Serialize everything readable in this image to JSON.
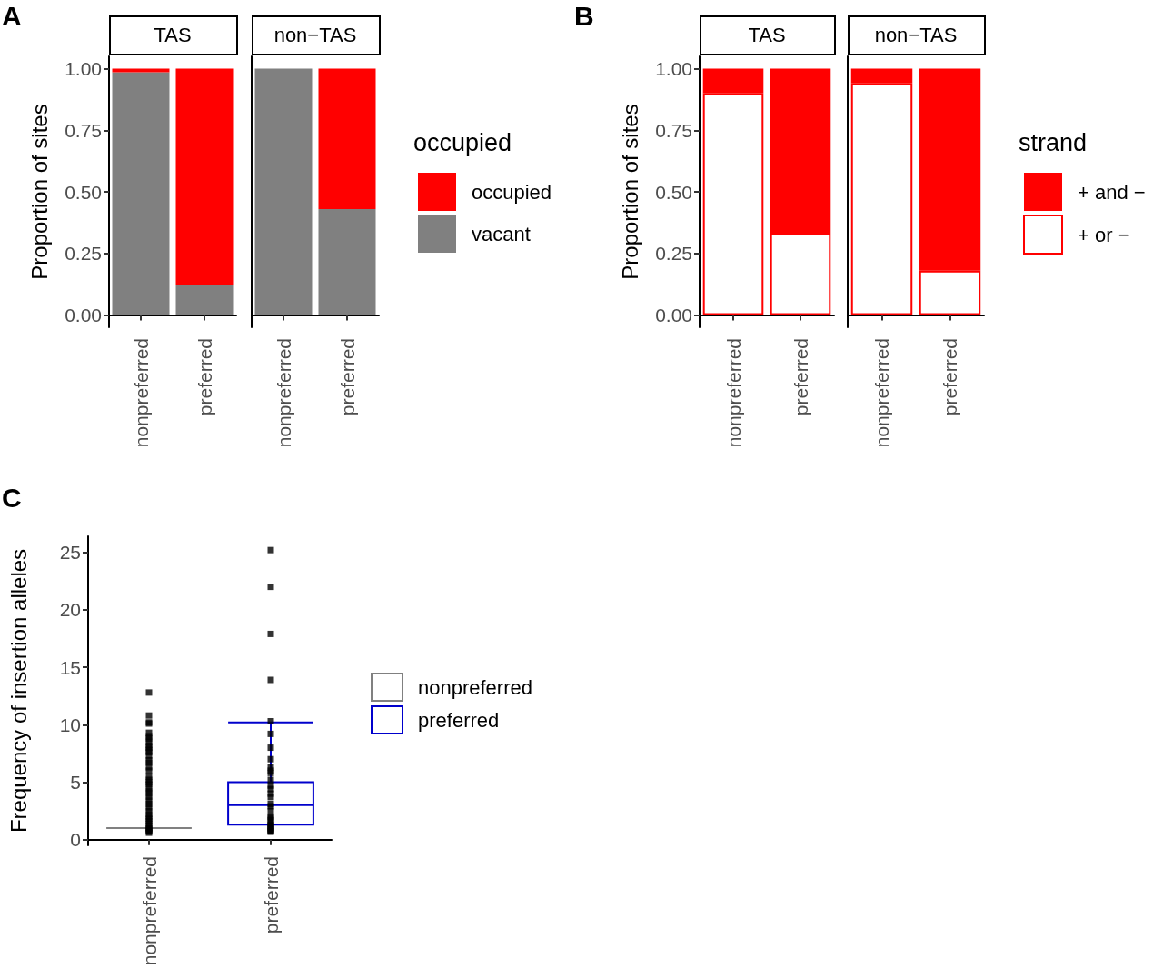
{
  "chart_data": [
    {
      "type": "bar",
      "title": "TAS",
      "annotations": [
        "A"
      ],
      "ylabel": "Proportion of sites",
      "categories": [
        "nonpreferred",
        "preferred"
      ],
      "stacked": true,
      "ylim": [
        -0.05,
        1.05
      ],
      "yticks": [
        {
          "value": 0,
          "label": "0.00"
        },
        {
          "value": 0.25,
          "label": "0.25"
        },
        {
          "value": 0.5,
          "label": "0.50"
        },
        {
          "value": 0.75,
          "label": "0.75"
        },
        {
          "value": 1,
          "label": "1.00"
        }
      ],
      "grid": false,
      "legend": false,
      "series": [
        {
          "color": "#808080",
          "values": [
            0.985,
            0.12
          ]
        },
        {
          "color": "#ff0000",
          "values": [
            0.015,
            0.88
          ]
        }
      ]
    },
    {
      "type": "bar",
      "title": "non−TAS",
      "categories": [
        "nonpreferred",
        "preferred"
      ],
      "stacked": true,
      "ylim": [
        -0.05,
        1.05
      ],
      "tick_labels": "x",
      "grid": false,
      "legend": "right",
      "legend_title": "occupied",
      "series": [
        {
          "name": "vacant",
          "color": "#808080",
          "values": [
            1.0,
            0.43
          ]
        },
        {
          "name": "occupied",
          "color": "#ff0000",
          "values": [
            0,
            0.57
          ]
        }
      ]
    },
    {
      "type": "bar",
      "title": "TAS",
      "annotations": [
        "B"
      ],
      "ylabel": "Proportion of sites",
      "categories": [
        "nonpreferred",
        "preferred"
      ],
      "stacked": true,
      "ylim": [
        -0.05,
        1.05
      ],
      "yticks": [
        {
          "value": 0,
          "label": "0.00"
        },
        {
          "value": 0.25,
          "label": "0.25"
        },
        {
          "value": 0.5,
          "label": "0.50"
        },
        {
          "value": 0.75,
          "label": "0.75"
        },
        {
          "value": 1,
          "label": "1.00"
        }
      ],
      "grid": false,
      "legend": false,
      "series": [
        {
          "color": "#ffffff",
          "values": [
            0.9,
            0.33
          ]
        },
        {
          "color": "#ff0000",
          "values": [
            0.1,
            0.67
          ]
        }
      ]
    },
    {
      "type": "bar",
      "title": "non−TAS",
      "categories": [
        "nonpreferred",
        "preferred"
      ],
      "stacked": true,
      "ylim": [
        -0.05,
        1.05
      ],
      "tick_labels": "x",
      "grid": false,
      "legend": "right",
      "legend_title": "strand",
      "series": [
        {
          "name": "+ or −",
          "color": "#ffffff",
          "values": [
            0.94,
            0.18
          ]
        },
        {
          "name": "+ and −",
          "color": "#ff0000",
          "values": [
            0.06,
            0.82
          ]
        }
      ]
    },
    {
      "type": "box",
      "annotations": [
        "C"
      ],
      "ylabel": "Frequency of insertion alleles",
      "categories": [
        "nonpreferred",
        "preferred"
      ],
      "ylim": [
        -0.5,
        26.4
      ],
      "yticks": [
        0,
        5,
        10,
        15,
        20,
        25
      ],
      "grid": false,
      "legend": "right",
      "marker": "square",
      "series": [
        {
          "name": "nonpreferred",
          "color": "#808080",
          "boxes": [
            {
              "low": 1,
              "q1": 1,
              "median": 1,
              "q3": 1,
              "high": 1
            },
            null
          ]
        },
        {
          "name": "preferred",
          "color": "#0000cc",
          "boxes": [
            null,
            {
              "low": 1.3,
              "q1": 1.3,
              "median": 3.0,
              "q3": 5.0,
              "high": 10.2
            }
          ]
        },
        {
          "type": "scatter",
          "color": "#000000",
          "x": [
            "nonpreferred",
            "nonpreferred",
            "nonpreferred",
            "nonpreferred",
            "nonpreferred",
            "nonpreferred",
            "nonpreferred",
            "nonpreferred",
            "nonpreferred",
            "nonpreferred",
            "nonpreferred",
            "nonpreferred",
            "nonpreferred",
            "nonpreferred",
            "nonpreferred",
            "nonpreferred",
            "nonpreferred",
            "nonpreferred",
            "nonpreferred",
            "nonpreferred",
            "nonpreferred",
            "nonpreferred",
            "nonpreferred",
            "nonpreferred",
            "nonpreferred",
            "nonpreferred",
            "nonpreferred",
            "nonpreferred",
            "nonpreferred",
            "nonpreferred",
            "nonpreferred",
            "nonpreferred",
            "nonpreferred",
            "nonpreferred",
            "nonpreferred",
            "nonpreferred",
            "nonpreferred",
            "nonpreferred",
            "nonpreferred",
            "nonpreferred",
            "preferred",
            "preferred",
            "preferred",
            "preferred",
            "preferred",
            "preferred",
            "preferred",
            "preferred",
            "preferred",
            "preferred",
            "preferred",
            "preferred",
            "preferred",
            "preferred",
            "preferred",
            "preferred",
            "preferred",
            "preferred",
            "preferred",
            "preferred",
            "preferred",
            "preferred",
            "preferred",
            "preferred",
            "preferred",
            "preferred",
            "preferred",
            "preferred",
            "preferred",
            "preferred"
          ],
          "values": [
            12.8,
            10.8,
            10.2,
            10.1,
            9.3,
            9.0,
            8.8,
            8.5,
            8.2,
            8.0,
            7.8,
            7.6,
            7.3,
            6.9,
            6.7,
            6.3,
            6.0,
            5.5,
            5.2,
            5.0,
            4.8,
            4.5,
            4.2,
            4.0,
            3.7,
            3.4,
            3.1,
            2.8,
            2.5,
            2.2,
            2.0,
            1.8,
            1.6,
            1.4,
            1.2,
            1.0,
            0.9,
            0.8,
            0.7,
            0.6,
            25.2,
            22.0,
            17.9,
            13.9,
            10.3,
            9.2,
            8.0,
            7.0,
            6.3,
            6.0,
            5.8,
            5.2,
            4.7,
            4.4,
            4.0,
            3.7,
            3.1,
            2.9,
            2.5,
            2.0,
            1.9,
            1.7,
            1.4,
            1.3,
            1.2,
            1.0,
            0.9,
            0.8,
            0.7,
            0.7
          ]
        }
      ]
    }
  ]
}
